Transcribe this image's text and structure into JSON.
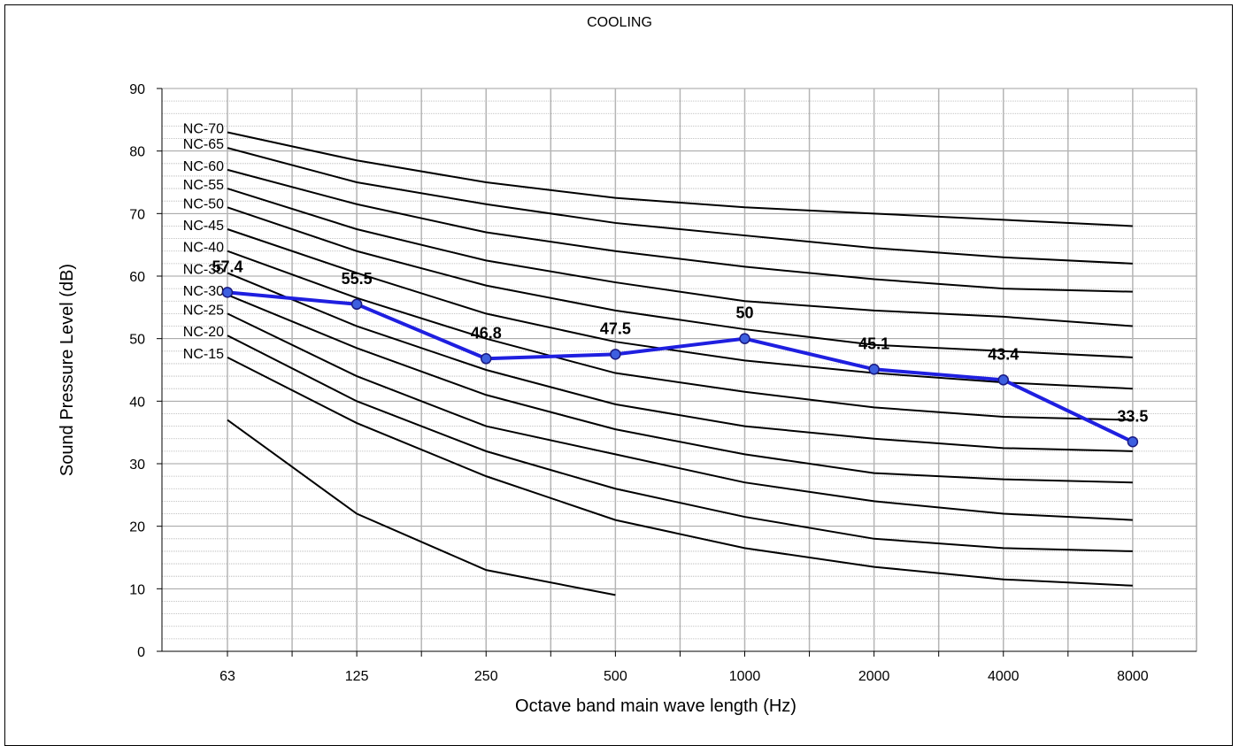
{
  "chart_data": {
    "type": "line",
    "title": "COOLING",
    "xlabel": "Octave band main wave length (Hz)",
    "ylabel": "Sound Pressure  Level (dB)",
    "categories": [
      "63",
      "125",
      "250",
      "500",
      "1000",
      "2000",
      "4000",
      "8000"
    ],
    "ylim": [
      0,
      90
    ],
    "yticks": [
      0,
      10,
      20,
      30,
      40,
      50,
      60,
      70,
      80,
      90
    ],
    "grid": "on",
    "measured": {
      "color": "#1f1fe0",
      "marker_color": "#3d5fe0",
      "values": [
        57.4,
        55.5,
        46.8,
        47.5,
        50,
        45.1,
        43.4,
        33.5
      ],
      "labels": [
        "57.4",
        "55.5",
        "46.8",
        "47.5",
        "50",
        "45.1",
        "43.4",
        "33.5"
      ]
    },
    "reference_curves": [
      {
        "name": "NC-70",
        "values": [
          83,
          78.5,
          75,
          72.5,
          71,
          70,
          69,
          68
        ]
      },
      {
        "name": "NC-65",
        "values": [
          80.5,
          75,
          71.5,
          68.5,
          66.5,
          64.5,
          63,
          62
        ]
      },
      {
        "name": "NC-60",
        "values": [
          77,
          71.5,
          67,
          64,
          61.5,
          59.5,
          58,
          57.5
        ]
      },
      {
        "name": "NC-55",
        "values": [
          74,
          67.5,
          62.5,
          59,
          56,
          54.5,
          53.5,
          52
        ]
      },
      {
        "name": "NC-50",
        "values": [
          71,
          64,
          58.5,
          54.5,
          51.5,
          49,
          48,
          47
        ]
      },
      {
        "name": "NC-45",
        "values": [
          67.5,
          60.5,
          54,
          49.5,
          46.5,
          44.5,
          43,
          42
        ]
      },
      {
        "name": "NC-40",
        "values": [
          64,
          56.5,
          50,
          44.5,
          41.5,
          39,
          37.5,
          37
        ]
      },
      {
        "name": "NC-35",
        "values": [
          60.5,
          52,
          45,
          39.5,
          36,
          34,
          32.5,
          32
        ]
      },
      {
        "name": "NC-30",
        "values": [
          57,
          48.5,
          41,
          35.5,
          31.5,
          28.5,
          27.5,
          27
        ]
      },
      {
        "name": "NC-25",
        "values": [
          54,
          44,
          36,
          31.5,
          27,
          24,
          22,
          21
        ]
      },
      {
        "name": "NC-20",
        "values": [
          50.5,
          40,
          32,
          26,
          21.5,
          18,
          16.5,
          16
        ]
      },
      {
        "name": "NC-15",
        "values": [
          47,
          36.5,
          28,
          21,
          16.5,
          13.5,
          11.5,
          10.5
        ]
      },
      {
        "name": "",
        "values": [
          37,
          22,
          13,
          9
        ]
      }
    ]
  }
}
